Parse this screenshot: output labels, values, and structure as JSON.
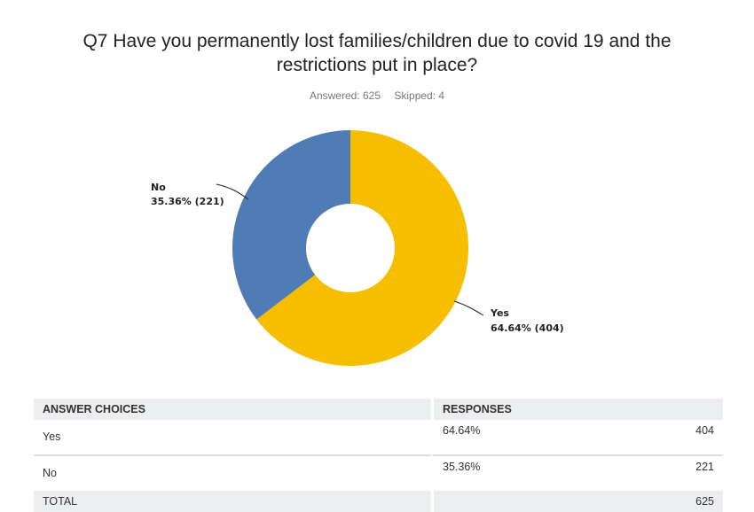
{
  "title_line1": "Q7 Have you permanently lost families/children due to covid 19 and the",
  "title_line2": "restrictions put in place?",
  "answered": "Answered: 625",
  "skipped": "Skipped: 4",
  "chart_data": {
    "type": "pie",
    "donut": true,
    "title": "Q7 Have you permanently lost families/children due to covid 19 and the restrictions put in place?",
    "categories": [
      "Yes",
      "No"
    ],
    "values": [
      64.64,
      35.36
    ],
    "counts": [
      404,
      221
    ],
    "colors": [
      "#F7BE00",
      "#507CB6"
    ],
    "labels": [
      {
        "name": "Yes",
        "value": "64.64% (404)"
      },
      {
        "name": "No",
        "value": "35.36% (221)"
      }
    ]
  },
  "table": {
    "headers": [
      "ANSWER CHOICES",
      "RESPONSES"
    ],
    "rows": [
      {
        "choice": "Yes",
        "percent": "64.64%",
        "count": "404"
      },
      {
        "choice": "No",
        "percent": "35.36%",
        "count": "221"
      }
    ],
    "total_label": "TOTAL",
    "total": "625"
  }
}
